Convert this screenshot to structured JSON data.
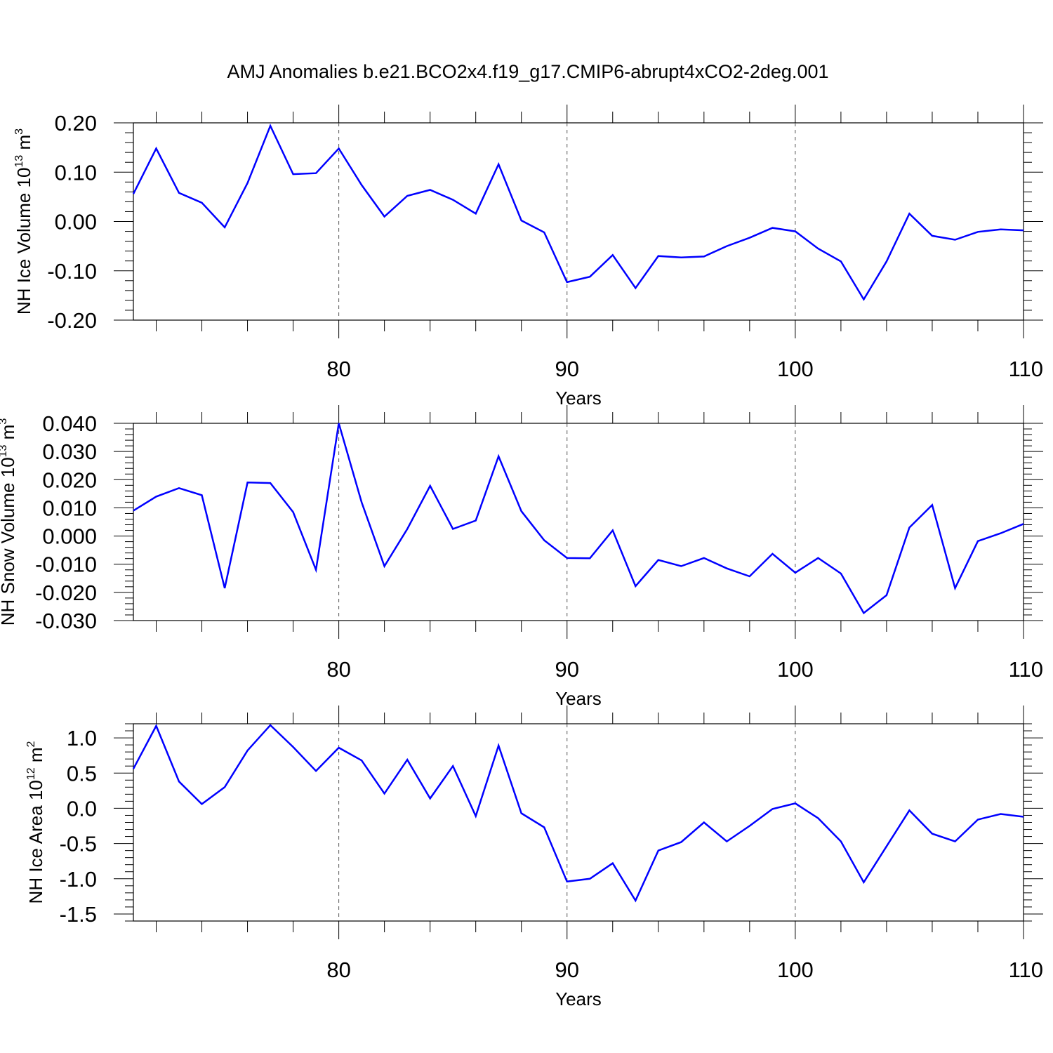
{
  "title": "AMJ Anomalies b.e21.BCO2x4.f19_g17.CMIP6-abrupt4xCO2-2deg.001",
  "line_color": "#0000ff",
  "chart_data": [
    {
      "type": "line",
      "ylabel": "NH Ice Volume 10",
      "ylabel_exp": "13",
      "ylabel_unit": " m",
      "ylabel_unit_exp": "3",
      "xlabel": "Years",
      "xlim": [
        71,
        110
      ],
      "ylim": [
        -0.2,
        0.2
      ],
      "yticks": [
        0.2,
        0.1,
        0.0,
        -0.1,
        -0.2
      ],
      "ytick_labels": [
        "0.20",
        "0.10",
        "0.00",
        "-0.10",
        "-0.20"
      ],
      "ytick_minor_step": 0.02,
      "xticks": [
        80,
        90,
        100,
        110
      ],
      "xtick_labels": [
        "80",
        "90",
        "100",
        "110"
      ],
      "x": [
        71,
        72,
        73,
        74,
        75,
        76,
        77,
        78,
        79,
        80,
        81,
        82,
        83,
        84,
        85,
        86,
        87,
        88,
        89,
        90,
        91,
        92,
        93,
        94,
        95,
        96,
        97,
        98,
        99,
        100,
        101,
        102,
        103,
        104,
        105,
        106,
        107,
        108,
        109,
        110
      ],
      "values": [
        0.056,
        0.148,
        0.058,
        0.038,
        -0.012,
        0.078,
        0.194,
        0.096,
        0.098,
        0.148,
        0.074,
        0.01,
        0.052,
        0.064,
        0.044,
        0.016,
        0.116,
        0.002,
        -0.022,
        -0.123,
        -0.112,
        -0.068,
        -0.135,
        -0.07,
        -0.073,
        -0.071,
        -0.05,
        -0.033,
        -0.013,
        -0.02,
        -0.055,
        -0.081,
        -0.158,
        -0.081,
        0.016,
        -0.029,
        -0.037,
        -0.021,
        -0.016,
        -0.018
      ]
    },
    {
      "type": "line",
      "ylabel": "NH Snow Volume 10",
      "ylabel_exp": "13",
      "ylabel_unit": " m",
      "ylabel_unit_exp": "3",
      "xlabel": "Years",
      "xlim": [
        71,
        110
      ],
      "ylim": [
        -0.03,
        0.04
      ],
      "yticks": [
        0.04,
        0.03,
        0.02,
        0.01,
        0.0,
        -0.01,
        -0.02,
        -0.03
      ],
      "ytick_labels": [
        "0.040",
        "0.030",
        "0.020",
        "0.010",
        "0.000",
        "-0.010",
        "-0.020",
        "-0.030"
      ],
      "ytick_minor_step": 0.002,
      "xticks": [
        80,
        90,
        100,
        110
      ],
      "xtick_labels": [
        "80",
        "90",
        "100",
        "110"
      ],
      "x": [
        71,
        72,
        73,
        74,
        75,
        76,
        77,
        78,
        79,
        80,
        81,
        82,
        83,
        84,
        85,
        86,
        87,
        88,
        89,
        90,
        91,
        92,
        93,
        94,
        95,
        96,
        97,
        98,
        99,
        100,
        101,
        102,
        103,
        104,
        105,
        106,
        107,
        108,
        109,
        110
      ],
      "values": [
        0.009,
        0.014,
        0.017,
        0.0145,
        -0.0185,
        0.019,
        0.0188,
        0.0085,
        -0.012,
        0.04,
        0.012,
        -0.0107,
        0.0025,
        0.0178,
        0.0025,
        0.0055,
        0.0283,
        0.0088,
        -0.0015,
        -0.0078,
        -0.0079,
        0.002,
        -0.0178,
        -0.0085,
        -0.0107,
        -0.0078,
        -0.0115,
        -0.0143,
        -0.0063,
        -0.013,
        -0.0078,
        -0.0133,
        -0.0273,
        -0.021,
        0.003,
        0.011,
        -0.0185,
        -0.0018,
        0.001,
        0.0043
      ]
    },
    {
      "type": "line",
      "ylabel": "NH Ice Area 10",
      "ylabel_exp": "12",
      "ylabel_unit": " m",
      "ylabel_unit_exp": "2",
      "xlabel": "Years",
      "xlim": [
        71,
        110
      ],
      "ylim": [
        -1.6,
        1.2
      ],
      "yticks": [
        1.0,
        0.5,
        0.0,
        -0.5,
        -1.0,
        -1.5
      ],
      "ytick_labels": [
        "1.0",
        "0.5",
        "0.0",
        "-0.5",
        "-1.0",
        "-1.5"
      ],
      "ytick_minor_step": 0.1,
      "xticks": [
        80,
        90,
        100,
        110
      ],
      "xtick_labels": [
        "80",
        "90",
        "100",
        "110"
      ],
      "x": [
        71,
        72,
        73,
        74,
        75,
        76,
        77,
        78,
        79,
        80,
        81,
        82,
        83,
        84,
        85,
        86,
        87,
        88,
        89,
        90,
        91,
        92,
        93,
        94,
        95,
        96,
        97,
        98,
        99,
        100,
        101,
        102,
        103,
        104,
        105,
        106,
        107,
        108,
        109,
        110
      ],
      "values": [
        0.56,
        1.17,
        0.38,
        0.06,
        0.3,
        0.82,
        1.18,
        0.87,
        0.53,
        0.86,
        0.68,
        0.21,
        0.69,
        0.14,
        0.6,
        -0.11,
        0.89,
        -0.07,
        -0.27,
        -1.04,
        -1.0,
        -0.78,
        -1.31,
        -0.6,
        -0.48,
        -0.2,
        -0.47,
        -0.25,
        -0.01,
        0.07,
        -0.14,
        -0.47,
        -1.05,
        -0.54,
        -0.03,
        -0.36,
        -0.47,
        -0.16,
        -0.08,
        -0.12
      ]
    }
  ]
}
